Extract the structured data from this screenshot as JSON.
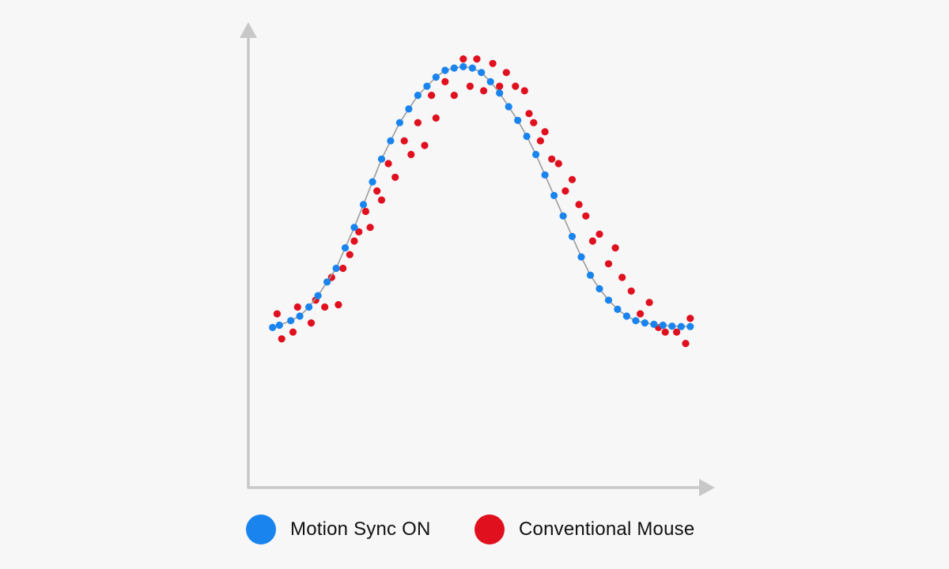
{
  "colors": {
    "background": "#f7f7f8",
    "axis": "#c8c8c8",
    "motion_sync": "#1a84ee",
    "conventional": "#e0101e",
    "curve": "#9c9c9c"
  },
  "chart_data": {
    "type": "scatter",
    "title": "",
    "xlabel": "",
    "ylabel": "",
    "xlim": [
      0,
      100
    ],
    "ylim": [
      0,
      100
    ],
    "grid": false,
    "legend_placement": "bottom",
    "series": [
      {
        "name": "Motion Sync ON",
        "color": "#1a84ee",
        "connected": true,
        "x": [
          5.0,
          6.5,
          9.0,
          11.0,
          13.0,
          15.0,
          17.0,
          19.0,
          21.0,
          23.0,
          25.0,
          27.0,
          29.0,
          31.0,
          33.0,
          35.0,
          37.0,
          39.0,
          41.0,
          43.0,
          45.0,
          47.0,
          49.0,
          51.0,
          53.0,
          55.0,
          57.0,
          59.0,
          61.0,
          63.0,
          65.0,
          67.0,
          69.0,
          71.0,
          73.0,
          75.0,
          77.0,
          79.0,
          81.0,
          83.0,
          85.0,
          87.0,
          89.0,
          91.0,
          93.0,
          95.0,
          97.0
        ],
        "y": [
          35.0,
          35.5,
          36.5,
          37.5,
          39.5,
          42.0,
          45.0,
          48.0,
          52.5,
          57.0,
          62.0,
          67.0,
          72.0,
          76.0,
          80.0,
          83.0,
          86.0,
          88.0,
          90.0,
          91.5,
          92.0,
          92.3,
          92.0,
          91.0,
          89.0,
          86.5,
          83.5,
          80.5,
          77.0,
          73.0,
          68.5,
          64.0,
          59.5,
          55.0,
          50.5,
          46.5,
          43.5,
          41.0,
          39.0,
          37.5,
          36.5,
          36.0,
          35.7,
          35.5,
          35.3,
          35.2,
          35.2
        ]
      },
      {
        "name": "Conventional Mouse",
        "color": "#e0101e",
        "connected": false,
        "x": [
          6.0,
          7.0,
          9.5,
          10.5,
          13.5,
          14.5,
          16.5,
          18.0,
          19.5,
          20.5,
          22.0,
          23.0,
          24.0,
          25.5,
          26.5,
          28.0,
          29.0,
          30.5,
          32.0,
          34.0,
          35.5,
          37.0,
          38.5,
          40.0,
          41.0,
          43.0,
          45.0,
          47.0,
          48.5,
          50.0,
          51.5,
          53.5,
          55.0,
          56.5,
          58.5,
          60.5,
          61.5,
          62.5,
          64.0,
          65.0,
          66.5,
          68.0,
          69.5,
          71.0,
          72.5,
          74.0,
          75.5,
          77.0,
          79.0,
          80.5,
          82.0,
          84.0,
          86.0,
          88.0,
          90.0,
          91.5,
          94.0,
          96.0,
          97.0
        ],
        "y": [
          38.0,
          32.5,
          34.0,
          39.5,
          36.0,
          41.0,
          39.5,
          46.0,
          40.0,
          48.0,
          51.0,
          54.0,
          56.0,
          60.5,
          57.0,
          65.0,
          63.0,
          71.0,
          68.0,
          76.0,
          73.0,
          80.0,
          75.0,
          86.0,
          81.0,
          89.0,
          86.0,
          94.0,
          88.0,
          94.0,
          87.0,
          93.0,
          88.0,
          91.0,
          88.0,
          87.0,
          82.0,
          80.0,
          76.0,
          78.0,
          72.0,
          71.0,
          65.0,
          67.5,
          62.0,
          59.5,
          54.0,
          55.5,
          49.0,
          52.5,
          46.0,
          43.0,
          38.0,
          40.5,
          35.0,
          34.0,
          34.0,
          31.5,
          37.0
        ]
      }
    ]
  }
}
